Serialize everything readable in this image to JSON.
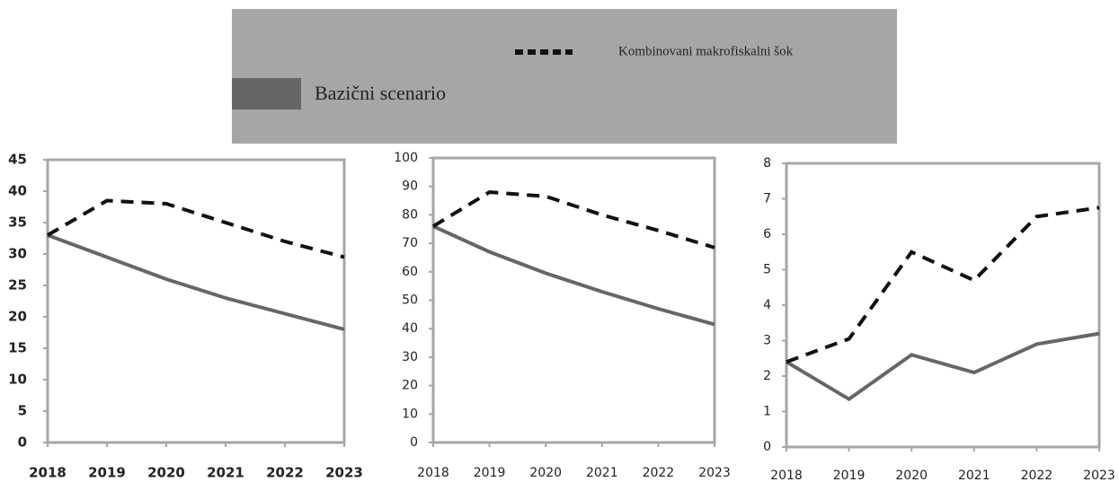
{
  "legend": [
    {
      "name": "Kombinovani makrofiskalni šok",
      "color": "#111111",
      "dashed": true
    },
    {
      "name": "Bazični scenario",
      "color": "#666666",
      "dashed": false
    }
  ],
  "chart_data": [
    {
      "type": "line",
      "categories": [
        "2018",
        "2019",
        "2020",
        "2021",
        "2022",
        "2023"
      ],
      "ylim": [
        0,
        45
      ],
      "yticks": [
        0,
        5,
        10,
        15,
        20,
        25,
        30,
        35,
        40,
        45
      ],
      "series": [
        {
          "color": "#666666",
          "values": [
            33,
            29.5,
            26,
            23,
            20.5,
            18
          ]
        },
        {
          "color": "#111111",
          "dashed": true,
          "values": [
            33,
            38.5,
            38,
            35,
            32,
            29.5
          ]
        }
      ]
    },
    {
      "type": "line",
      "categories": [
        "2018",
        "2019",
        "2020",
        "2021",
        "2022",
        "2023"
      ],
      "ylim": [
        0,
        100
      ],
      "yticks": [
        0,
        10,
        20,
        30,
        40,
        50,
        60,
        70,
        80,
        90,
        100
      ],
      "series": [
        {
          "color": "#666666",
          "values": [
            76,
            67,
            59.5,
            53,
            47,
            41.5
          ]
        },
        {
          "color": "#111111",
          "dashed": true,
          "values": [
            76,
            88,
            86.5,
            80,
            74.5,
            68.5
          ]
        }
      ]
    },
    {
      "type": "line",
      "categories": [
        "2018",
        "2019",
        "2020",
        "2021",
        "2022",
        "2023"
      ],
      "ylim": [
        0,
        8
      ],
      "yticks": [
        0,
        1,
        2,
        3,
        4,
        5,
        6,
        7,
        8
      ],
      "series": [
        {
          "color": "#666666",
          "values": [
            2.4,
            1.35,
            2.6,
            2.1,
            2.9,
            3.2
          ]
        },
        {
          "color": "#111111",
          "dashed": true,
          "values": [
            2.4,
            3.05,
            5.5,
            4.7,
            6.5,
            6.75
          ]
        }
      ]
    }
  ]
}
